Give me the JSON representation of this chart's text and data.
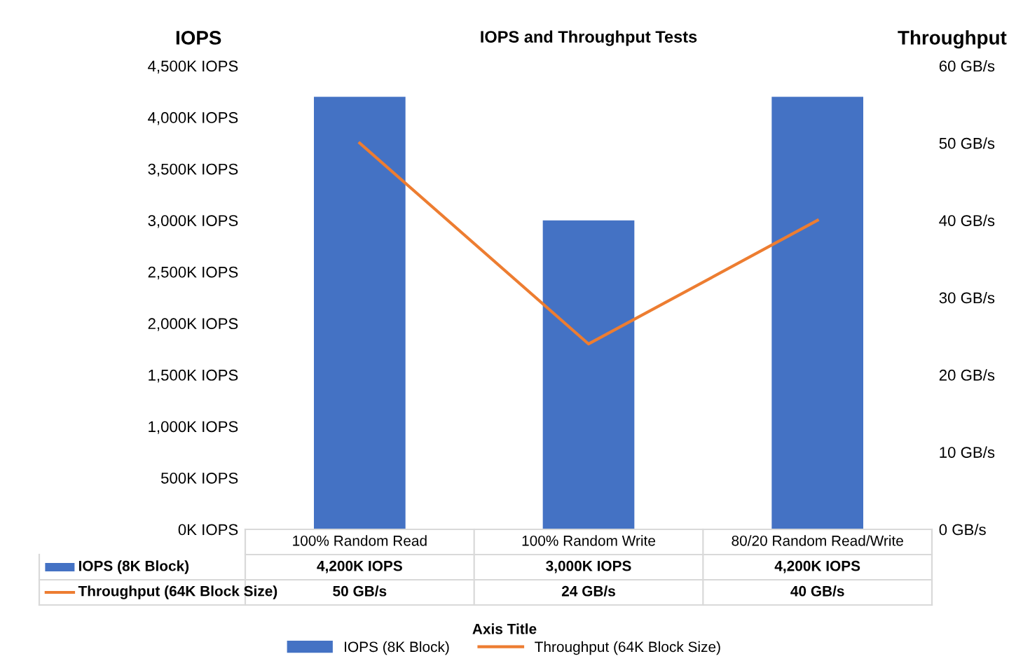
{
  "chart_data": {
    "type": "bar",
    "title": "IOPS and Throughput Tests",
    "annotations": [
      "Axis Title"
    ],
    "ylabel": "IOPS",
    "y2label": "Throughput",
    "categories": [
      "100% Random Read",
      "100% Random Write",
      "80/20 Random Read/Write"
    ],
    "series": [
      {
        "name": "IOPS (8K Block)",
        "color": "#4472c4",
        "values": [
          4200,
          3000,
          4200
        ],
        "value_labels": [
          "4,200K IOPS",
          "3,000K IOPS",
          "4,200K IOPS"
        ]
      },
      {
        "name": "Throughput (64K Block Size)",
        "type": "line",
        "axis": "y2",
        "color": "#ed7d31",
        "values": [
          50,
          24,
          40
        ],
        "value_labels": [
          "50 GB/s",
          "24 GB/s",
          "40 GB/s"
        ]
      }
    ],
    "ylim": [
      0,
      4500
    ],
    "yticks": [
      {
        "value": 0,
        "label": "0K IOPS"
      },
      {
        "value": 500,
        "label": "500K IOPS"
      },
      {
        "value": 1000,
        "label": "1,000K IOPS"
      },
      {
        "value": 1500,
        "label": "1,500K IOPS"
      },
      {
        "value": 2000,
        "label": "2,000K IOPS"
      },
      {
        "value": 2500,
        "label": "2,500K IOPS"
      },
      {
        "value": 3000,
        "label": "3,000K IOPS"
      },
      {
        "value": 3500,
        "label": "3,500K IOPS"
      },
      {
        "value": 4000,
        "label": "4,000K IOPS"
      },
      {
        "value": 4500,
        "label": "4,500K IOPS"
      }
    ],
    "y2lim": [
      0,
      60
    ],
    "y2ticks": [
      {
        "value": 0,
        "label": "0 GB/s"
      },
      {
        "value": 10,
        "label": "10 GB/s"
      },
      {
        "value": 20,
        "label": "20 GB/s"
      },
      {
        "value": 30,
        "label": "30 GB/s"
      },
      {
        "value": 40,
        "label": "40 GB/s"
      },
      {
        "value": 50,
        "label": "50 GB/s"
      },
      {
        "value": 60,
        "label": "60 GB/s"
      }
    ],
    "legend": "bottom"
  }
}
